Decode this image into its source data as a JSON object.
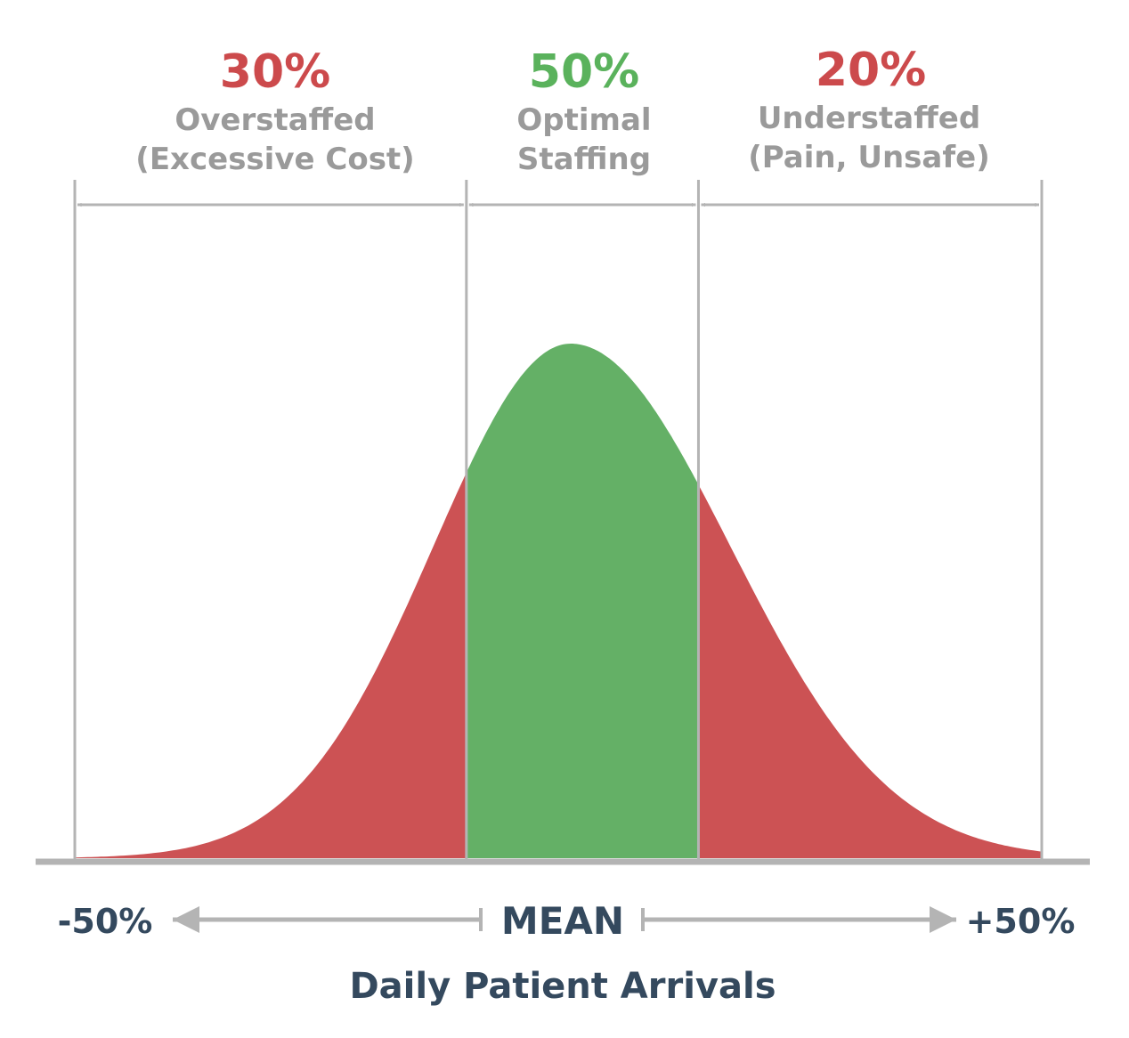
{
  "chart_data": {
    "type": "area",
    "curve": "normal distribution",
    "xlabel": "Daily Patient Arrivals",
    "tick_labels": {
      "left": "-50%",
      "center": "MEAN",
      "right": "+50%"
    },
    "xlim": [
      -50,
      50
    ],
    "mean": 0,
    "boundaries": [
      -50,
      -9.5,
      14.5,
      50
    ],
    "regions": [
      {
        "percent": "30%",
        "label_line1": "Overstaffed",
        "label_line2": "(Excessive Cost)",
        "color": "#cc5254",
        "percent_color": "#cc4a4c",
        "x_range": [
          -50,
          -9.5
        ]
      },
      {
        "percent": "50%",
        "label_line1": "Optimal",
        "label_line2": "Staffing",
        "color": "#64b066",
        "percent_color": "#5ab25c",
        "x_range": [
          -9.5,
          14.5
        ]
      },
      {
        "percent": "20%",
        "label_line1": "Understaffed",
        "label_line2": "(Pain, Unsafe)",
        "color": "#cc5254",
        "percent_color": "#cc4a4c",
        "x_range": [
          14.5,
          50
        ]
      }
    ],
    "colors": {
      "label_gray": "#9a9a9a",
      "axis_gray": "#b4b4b4",
      "axis_label": "#34495e"
    }
  }
}
